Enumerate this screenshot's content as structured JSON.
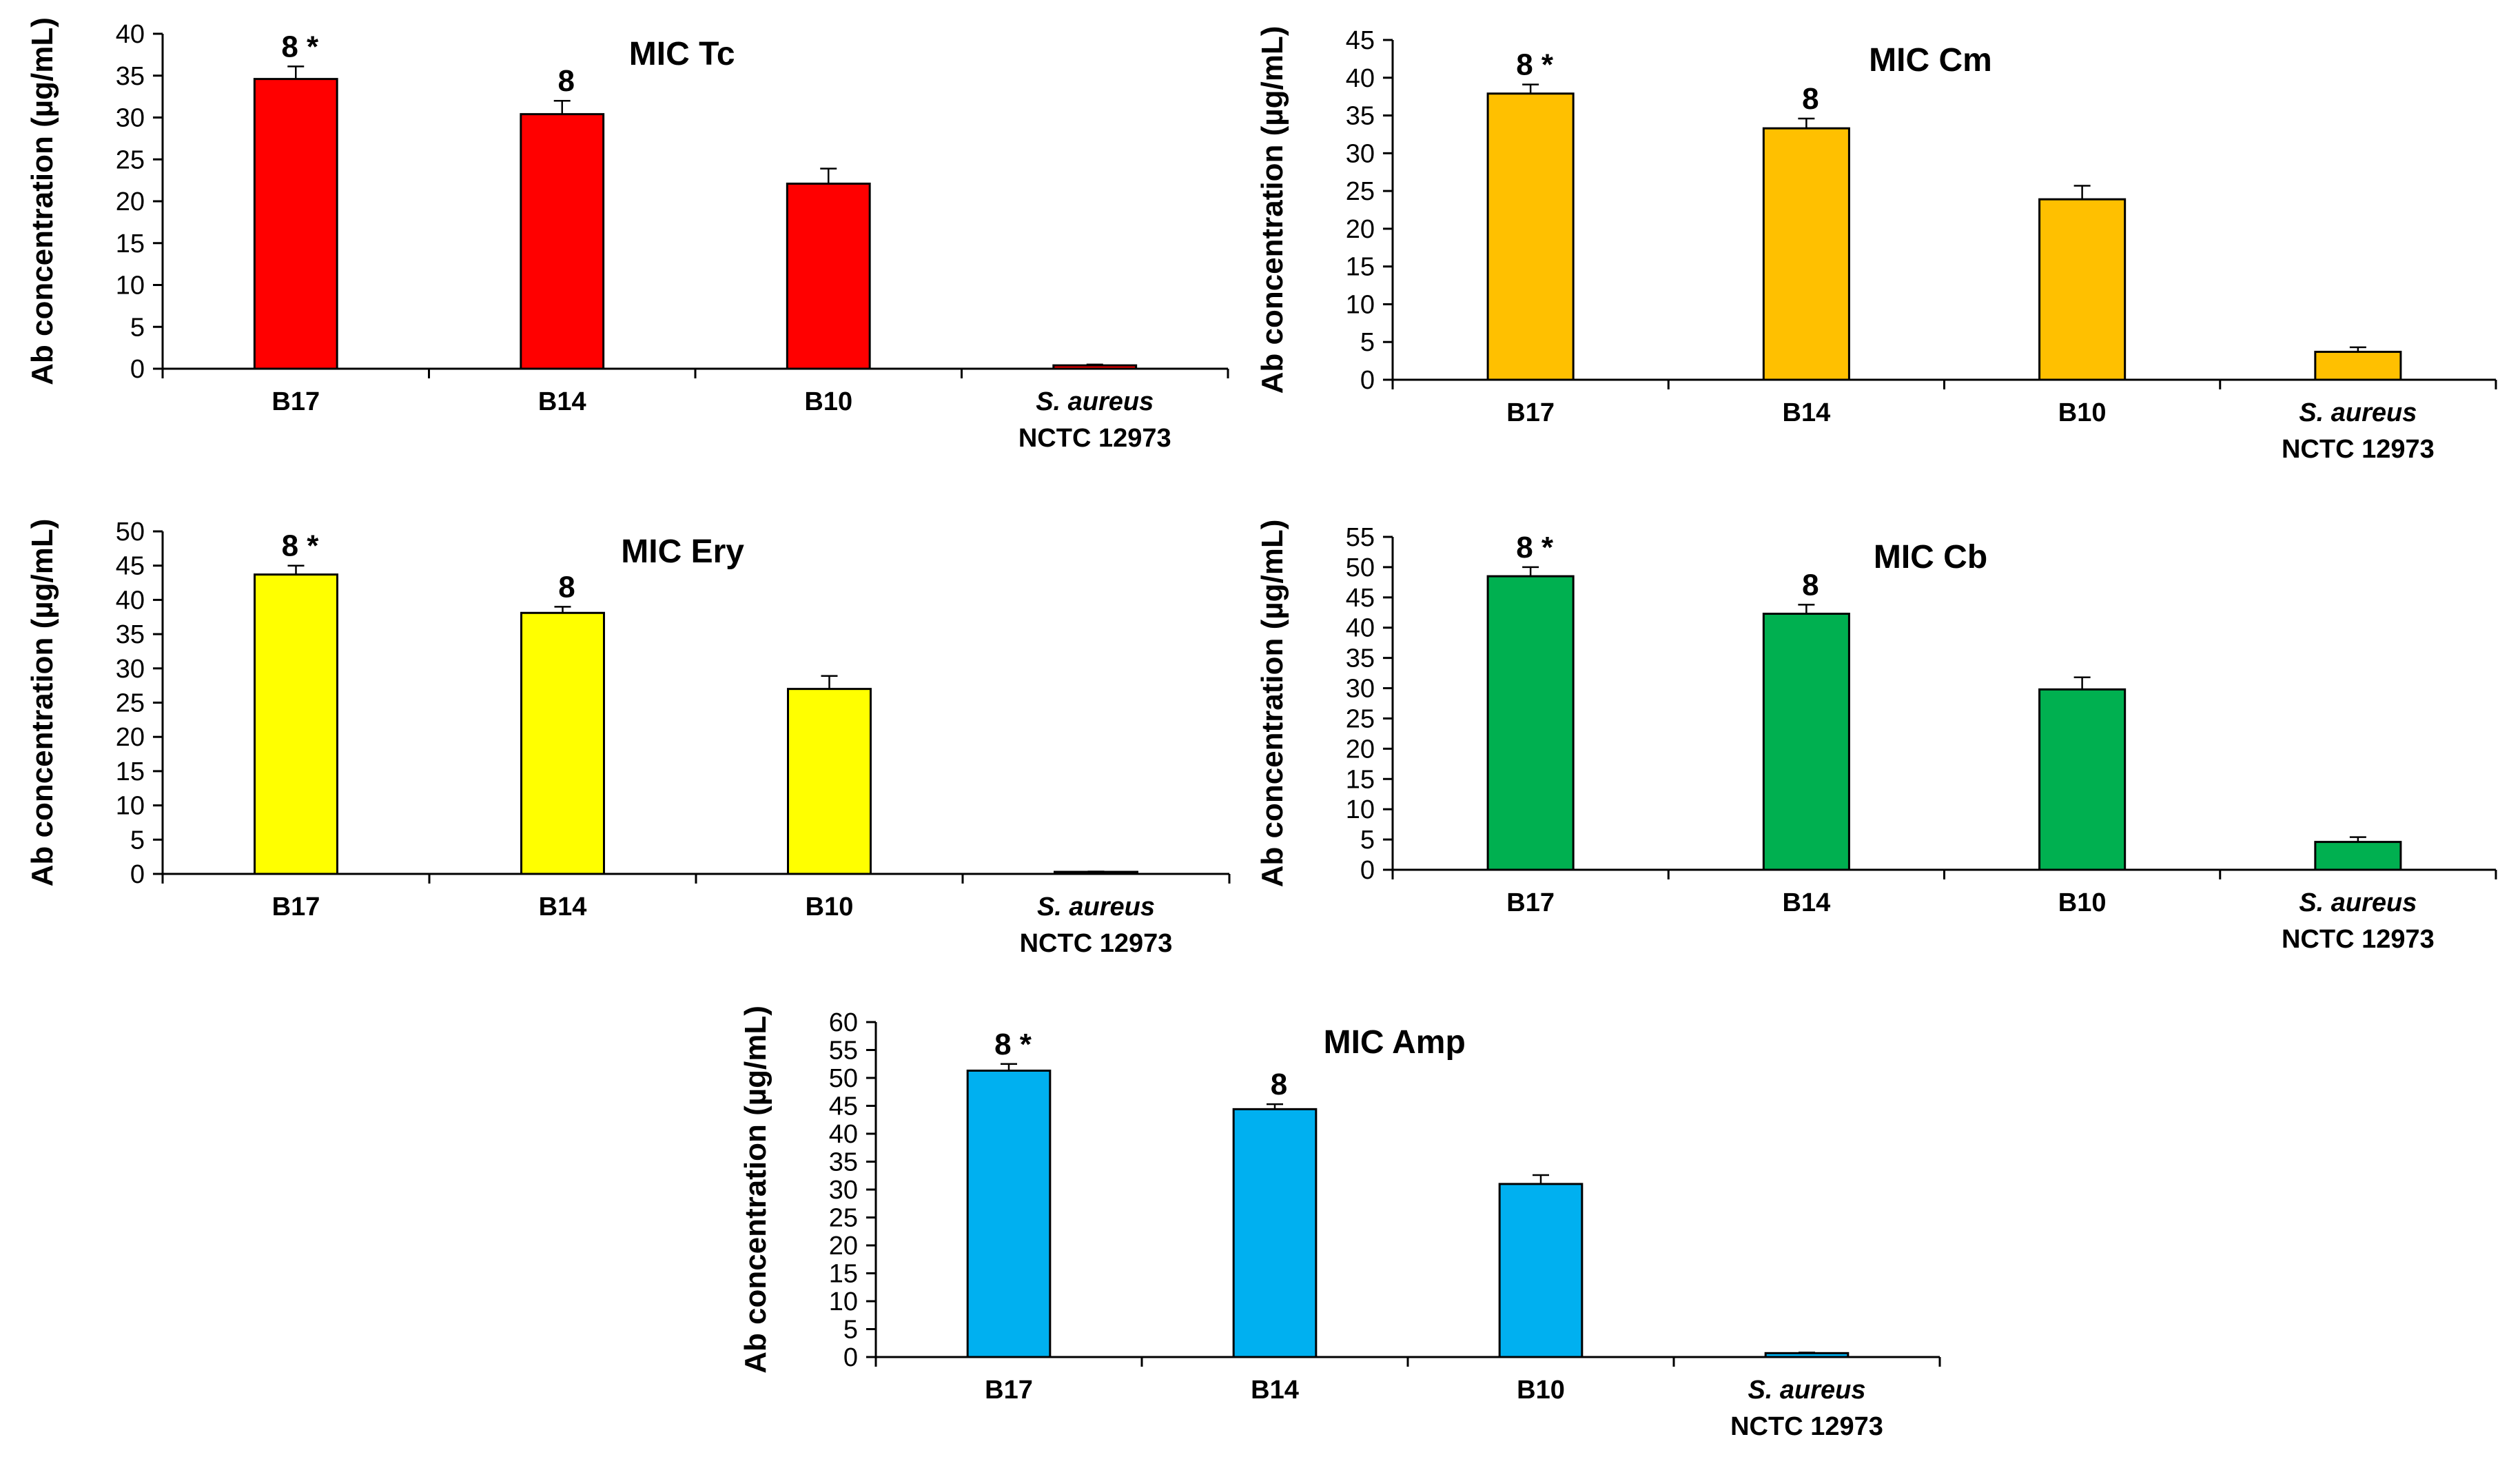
{
  "chart_data": [
    {
      "type": "bar",
      "title": "MIC Tc",
      "ylabel": "Ab concentration (µg/mL)",
      "xlabel": "",
      "ylim": [
        0,
        40
      ],
      "yticks": [
        0,
        5,
        10,
        15,
        20,
        25,
        30,
        35,
        40
      ],
      "categories": [
        {
          "line1": "B17",
          "line2": "",
          "italic": false
        },
        {
          "line1": "B14",
          "line2": "",
          "italic": false
        },
        {
          "line1": "B10",
          "line2": "",
          "italic": false
        },
        {
          "line1": "S. aureus",
          "line2": "NCTC 12973",
          "italic": true
        }
      ],
      "values": [
        34.6,
        30.4,
        22.1,
        0.4
      ],
      "errors": [
        1.5,
        1.6,
        1.8,
        0.1
      ],
      "annotations": [
        "8 *",
        "8",
        "",
        ""
      ],
      "color": "#ff0000"
    },
    {
      "type": "bar",
      "title": "MIC Cm",
      "ylabel": "Ab concentration (µg/mL)",
      "xlabel": "",
      "ylim": [
        0,
        45
      ],
      "yticks": [
        0,
        5,
        10,
        15,
        20,
        25,
        30,
        35,
        40,
        45
      ],
      "categories": [
        {
          "line1": "B17",
          "line2": "",
          "italic": false
        },
        {
          "line1": "B14",
          "line2": "",
          "italic": false
        },
        {
          "line1": "B10",
          "line2": "",
          "italic": false
        },
        {
          "line1": "S. aureus",
          "line2": "NCTC 12973",
          "italic": true
        }
      ],
      "values": [
        37.9,
        33.3,
        23.9,
        3.7
      ],
      "errors": [
        1.2,
        1.3,
        1.8,
        0.6
      ],
      "annotations": [
        "8 *",
        "8",
        "",
        ""
      ],
      "color": "#ffc000"
    },
    {
      "type": "bar",
      "title": "MIC Ery",
      "ylabel": "Ab concentration (µg/mL)",
      "xlabel": "",
      "ylim": [
        0,
        50
      ],
      "yticks": [
        0,
        5,
        10,
        15,
        20,
        25,
        30,
        35,
        40,
        45,
        50
      ],
      "categories": [
        {
          "line1": "B17",
          "line2": "",
          "italic": false
        },
        {
          "line1": "B14",
          "line2": "",
          "italic": false
        },
        {
          "line1": "B10",
          "line2": "",
          "italic": false
        },
        {
          "line1": "S. aureus",
          "line2": "NCTC 12973",
          "italic": true
        }
      ],
      "values": [
        43.7,
        38.1,
        27.0,
        0.3
      ],
      "errors": [
        1.3,
        0.9,
        1.9,
        0.05
      ],
      "annotations": [
        "8 *",
        "8",
        "",
        ""
      ],
      "color": "#ffff00"
    },
    {
      "type": "bar",
      "title": "MIC Cb",
      "ylabel": "Ab concentration (µg/mL)",
      "xlabel": "",
      "ylim": [
        0,
        55
      ],
      "yticks": [
        0,
        5,
        10,
        15,
        20,
        25,
        30,
        35,
        40,
        45,
        50,
        55
      ],
      "categories": [
        {
          "line1": "B17",
          "line2": "",
          "italic": false
        },
        {
          "line1": "B14",
          "line2": "",
          "italic": false
        },
        {
          "line1": "B10",
          "line2": "",
          "italic": false
        },
        {
          "line1": "S. aureus",
          "line2": "NCTC 12973",
          "italic": true
        }
      ],
      "values": [
        48.5,
        42.3,
        29.8,
        4.6
      ],
      "errors": [
        1.5,
        1.5,
        2.0,
        0.8
      ],
      "annotations": [
        "8 *",
        "8",
        "",
        ""
      ],
      "color": "#00b050"
    },
    {
      "type": "bar",
      "title": "MIC Amp",
      "ylabel": "Ab concentration (µg/mL)",
      "xlabel": "",
      "ylim": [
        0,
        60
      ],
      "yticks": [
        0,
        5,
        10,
        15,
        20,
        25,
        30,
        35,
        40,
        45,
        50,
        55,
        60
      ],
      "categories": [
        {
          "line1": "B17",
          "line2": "",
          "italic": false
        },
        {
          "line1": "B14",
          "line2": "",
          "italic": false
        },
        {
          "line1": "B10",
          "line2": "",
          "italic": false
        },
        {
          "line1": "S. aureus",
          "line2": "NCTC 12973",
          "italic": true
        }
      ],
      "values": [
        51.3,
        44.4,
        31.0,
        0.7
      ],
      "errors": [
        1.2,
        0.9,
        1.6,
        0.1
      ],
      "annotations": [
        "8 *",
        "8",
        "",
        ""
      ],
      "color": "#00b0f0"
    }
  ]
}
